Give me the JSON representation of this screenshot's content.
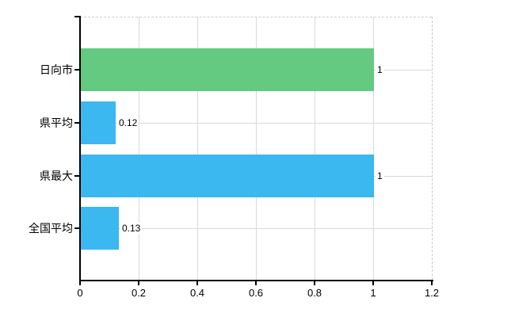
{
  "chart_data": {
    "type": "bar",
    "orientation": "horizontal",
    "title": "",
    "categories": [
      "日向市",
      "県平均",
      "県最大",
      "全国平均"
    ],
    "values": [
      1,
      0.12,
      1,
      0.13
    ],
    "value_labels": [
      "1",
      "0.12",
      "1",
      "0.13"
    ],
    "bar_colors": [
      "#64c981",
      "#3ab8ef",
      "#3ab8ef",
      "#3ab8ef"
    ],
    "xlabel": "",
    "ylabel": "",
    "xlim": [
      0,
      1.2
    ],
    "x_ticks": [
      0,
      0.2,
      0.4,
      0.6,
      0.8,
      1,
      1.2
    ],
    "x_tick_labels": [
      "0",
      "0.2",
      "0.4",
      "0.6",
      "0.8",
      "1",
      "1.2"
    ],
    "grid": true,
    "legend": false
  },
  "colors": {
    "background": "#ffffff",
    "axis": "#000000",
    "gridline": "#d9d9d9",
    "plot_border_dashed": "#cccccc",
    "text": "#000000"
  }
}
